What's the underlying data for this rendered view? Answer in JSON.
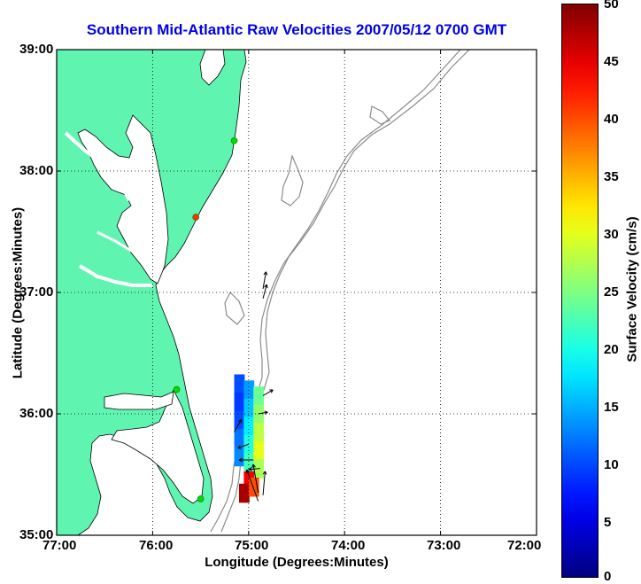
{
  "title": "Southern Mid-Atlantic Raw Velocities 2007/05/12 0700 GMT",
  "axes": {
    "xlabel": "Longitude (Degrees:Minutes)",
    "ylabel": "Latitude (Degrees:Minutes)",
    "x_ticks": [
      "77:00",
      "76:00",
      "75:00",
      "74:00",
      "73:00",
      "72:00"
    ],
    "y_ticks": [
      "39:00",
      "38:00",
      "37:00",
      "36:00",
      "35:00"
    ],
    "x_range": [
      -77,
      -72
    ],
    "y_range": [
      35,
      39
    ],
    "grid": "dotted"
  },
  "colorbar": {
    "label": "Surface Velocity (cm/s)",
    "ticks": [
      "50",
      "45",
      "40",
      "35",
      "30",
      "25",
      "20",
      "15",
      "10",
      "5",
      "0"
    ],
    "range": [
      0,
      50
    ]
  },
  "colors": {
    "land": "#5ff5b0",
    "water": "#ffffff",
    "coastline": "#000000",
    "bathymetry": "#8c8c8c",
    "title": "#0000e6",
    "site_active": "#00dd00",
    "site_other": "#ff3300"
  },
  "stations": [
    {
      "lon": -75.15,
      "lat": 38.25,
      "status": "active"
    },
    {
      "lon": -75.55,
      "lat": 37.62,
      "status": "other"
    },
    {
      "lon": -75.75,
      "lat": 36.2,
      "status": "active"
    },
    {
      "lon": -75.5,
      "lat": 35.3,
      "status": "active"
    }
  ],
  "velocity_cells": [
    {
      "lon": -75.1,
      "lat": 36.25,
      "v": 10
    },
    {
      "lon": -75.1,
      "lat": 36.1,
      "v": 9
    },
    {
      "lon": -75.1,
      "lat": 35.95,
      "v": 10
    },
    {
      "lon": -75.1,
      "lat": 35.8,
      "v": 12
    },
    {
      "lon": -75.1,
      "lat": 35.65,
      "v": 13
    },
    {
      "lon": -75.0,
      "lat": 36.2,
      "v": 14
    },
    {
      "lon": -75.0,
      "lat": 36.05,
      "v": 16
    },
    {
      "lon": -75.0,
      "lat": 35.9,
      "v": 18
    },
    {
      "lon": -75.0,
      "lat": 35.75,
      "v": 20
    },
    {
      "lon": -75.0,
      "lat": 35.6,
      "v": 22
    },
    {
      "lon": -74.9,
      "lat": 36.15,
      "v": 24
    },
    {
      "lon": -74.9,
      "lat": 36.0,
      "v": 26
    },
    {
      "lon": -74.9,
      "lat": 35.85,
      "v": 28
    },
    {
      "lon": -74.9,
      "lat": 35.7,
      "v": 30
    },
    {
      "lon": -74.9,
      "lat": 35.55,
      "v": 27
    },
    {
      "lon": -75.0,
      "lat": 35.45,
      "v": 44
    },
    {
      "lon": -75.05,
      "lat": 35.35,
      "v": 48
    },
    {
      "lon": -74.95,
      "lat": 35.4,
      "v": 40
    }
  ],
  "vectors": [
    {
      "lon": -74.85,
      "lat": 37.03,
      "dir": 10,
      "len": 0.18
    },
    {
      "lon": -74.85,
      "lat": 36.95,
      "dir": 15,
      "len": 0.15
    },
    {
      "lon": -74.85,
      "lat": 36.15,
      "dir": 60,
      "len": 0.12
    },
    {
      "lon": -74.9,
      "lat": 36.0,
      "dir": 80,
      "len": 0.1
    },
    {
      "lon": -75.0,
      "lat": 35.75,
      "dir": 250,
      "len": 0.12
    },
    {
      "lon": -74.95,
      "lat": 35.62,
      "dir": 270,
      "len": 0.15
    },
    {
      "lon": -74.88,
      "lat": 35.55,
      "dir": 265,
      "len": 0.12
    },
    {
      "lon": -74.9,
      "lat": 35.35,
      "dir": 350,
      "len": 0.3
    },
    {
      "lon": -74.9,
      "lat": 35.28,
      "dir": 340,
      "len": 0.35
    },
    {
      "lon": -74.85,
      "lat": 35.33,
      "dir": 5,
      "len": 0.25
    },
    {
      "lon": -75.15,
      "lat": 35.85,
      "dir": 30,
      "len": 0.15
    }
  ]
}
